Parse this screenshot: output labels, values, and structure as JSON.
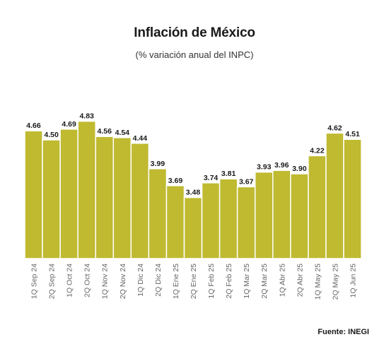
{
  "title": "Inflación de México",
  "subtitle": "(% variación anual del INPC)",
  "source": "Fuente: INEGI",
  "chart_data": {
    "type": "bar",
    "title": "Inflación de México",
    "subtitle": "(% variación anual del INPC)",
    "categories": [
      "1Q Sep 24",
      "2Q Sep 24",
      "1Q Oct 24",
      "2Q Oct 24",
      "1Q Nov 24",
      "2Q Nov 24",
      "1Q Dic 24",
      "2Q Dic 24",
      "1Q Ene 25",
      "2Q Ene 25",
      "1Q Feb 25",
      "2Q Feb 25",
      "1Q Mar 25",
      "2Q Mar 25",
      "1Q Abr 25",
      "2Q Abr 25",
      "1Q May 25",
      "2Q May 25",
      "1Q Jun 25"
    ],
    "values": [
      4.66,
      4.5,
      4.69,
      4.83,
      4.56,
      4.54,
      4.44,
      3.99,
      3.69,
      3.48,
      3.74,
      3.81,
      3.67,
      3.93,
      3.96,
      3.9,
      4.22,
      4.62,
      4.51
    ],
    "labels": [
      "4.66",
      "4.50",
      "4.69",
      "4.83",
      "4.56",
      "4.54",
      "4.44",
      "3.99",
      "3.69",
      "3.48",
      "3.74",
      "3.81",
      "3.67",
      "3.93",
      "3.96",
      "3.90",
      "4.22",
      "4.62",
      "4.51"
    ],
    "ylim": [
      2.4,
      4.9
    ],
    "grid": false,
    "legend": "none",
    "bar_color": "#bfba30",
    "bar_stroke": "#ffffff",
    "label_color": "#1a1a1a",
    "tick_color": "#666666"
  }
}
